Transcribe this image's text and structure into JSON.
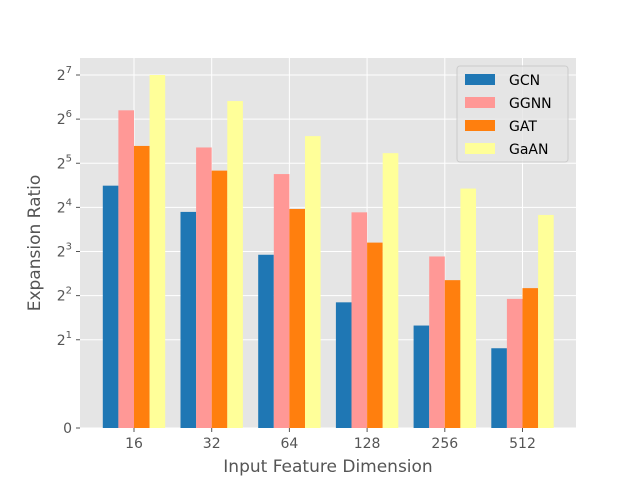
{
  "chart_data": {
    "type": "bar",
    "xlabel": "Input Feature Dimension",
    "ylabel": "Expansion Ratio",
    "categories": [
      "16",
      "32",
      "64",
      "128",
      "256",
      "512"
    ],
    "y_scale": "symlog2",
    "ylim": [
      0,
      128
    ],
    "yticks": [
      {
        "value": 0,
        "base": "0",
        "exp": ""
      },
      {
        "value": 2,
        "base": "2",
        "exp": "1"
      },
      {
        "value": 4,
        "base": "2",
        "exp": "2"
      },
      {
        "value": 8,
        "base": "2",
        "exp": "3"
      },
      {
        "value": 16,
        "base": "2",
        "exp": "4"
      },
      {
        "value": 32,
        "base": "2",
        "exp": "5"
      },
      {
        "value": 64,
        "base": "2",
        "exp": "6"
      },
      {
        "value": 128,
        "base": "2",
        "exp": "7"
      }
    ],
    "grid": true,
    "legend_position": "top-right",
    "series": [
      {
        "name": "GCN",
        "color": "#1f77b4",
        "values": [
          22.5,
          14.9,
          7.6,
          3.6,
          2.5,
          1.75
        ]
      },
      {
        "name": "GGNN",
        "color": "#ff9896",
        "values": [
          73.5,
          41.0,
          27.0,
          14.8,
          7.4,
          3.8
        ]
      },
      {
        "name": "GAT",
        "color": "#ff7f0e",
        "values": [
          42.0,
          28.5,
          15.6,
          9.2,
          5.1,
          4.5
        ]
      },
      {
        "name": "GaAN",
        "color": "#ffff99",
        "values": [
          128.0,
          85.0,
          49.0,
          37.5,
          21.5,
          14.2
        ]
      }
    ]
  }
}
